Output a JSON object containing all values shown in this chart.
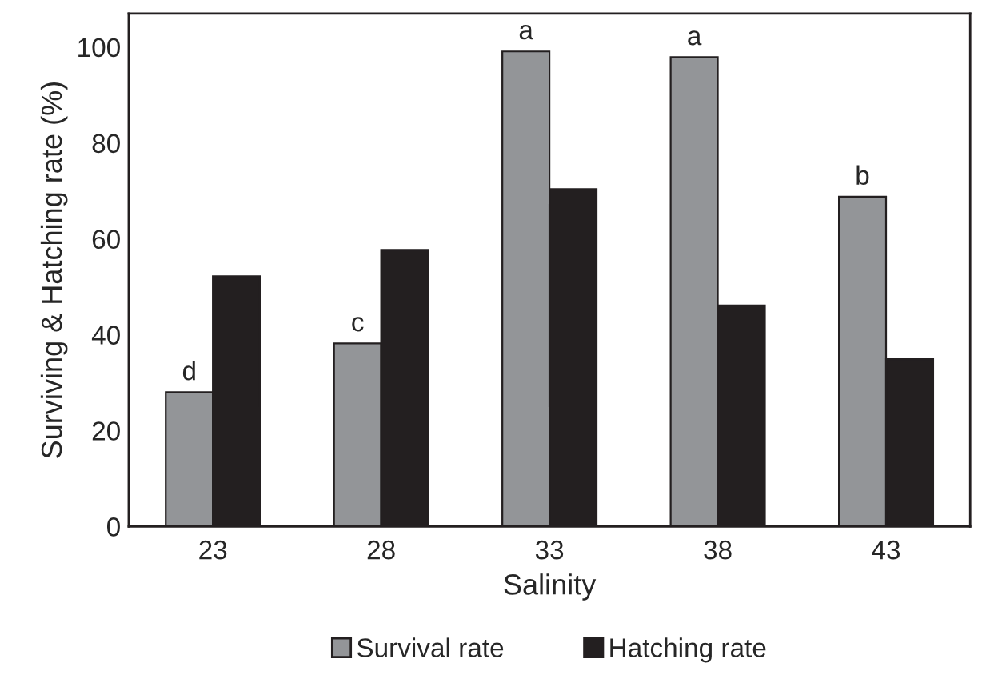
{
  "chart_data": {
    "type": "bar",
    "xlabel": "Salinity",
    "ylabel": "Surviving & Hatching rate (%)",
    "categories": [
      "23",
      "28",
      "33",
      "38",
      "43"
    ],
    "series": [
      {
        "name": "Survival rate",
        "color": "#939598",
        "values": [
          28,
          38.2,
          99.1,
          97.9,
          68.8
        ]
      },
      {
        "name": "Hatching rate",
        "color": "#231f20",
        "values": [
          52.2,
          57.7,
          70.4,
          46.1,
          34.9
        ]
      }
    ],
    "annotations": [
      {
        "text": "d",
        "x": "23",
        "y": 28
      },
      {
        "text": "c",
        "x": "28",
        "y": 38.2
      },
      {
        "text": "a",
        "x": "33",
        "y": 99.1
      },
      {
        "text": "a",
        "x": "38",
        "y": 97.9
      },
      {
        "text": "b",
        "x": "43",
        "y": 68.8
      }
    ],
    "ylim": [
      0,
      107
    ],
    "yticks": [
      0,
      20,
      40,
      60,
      80,
      100
    ],
    "grid": false,
    "legend": "bottom"
  }
}
